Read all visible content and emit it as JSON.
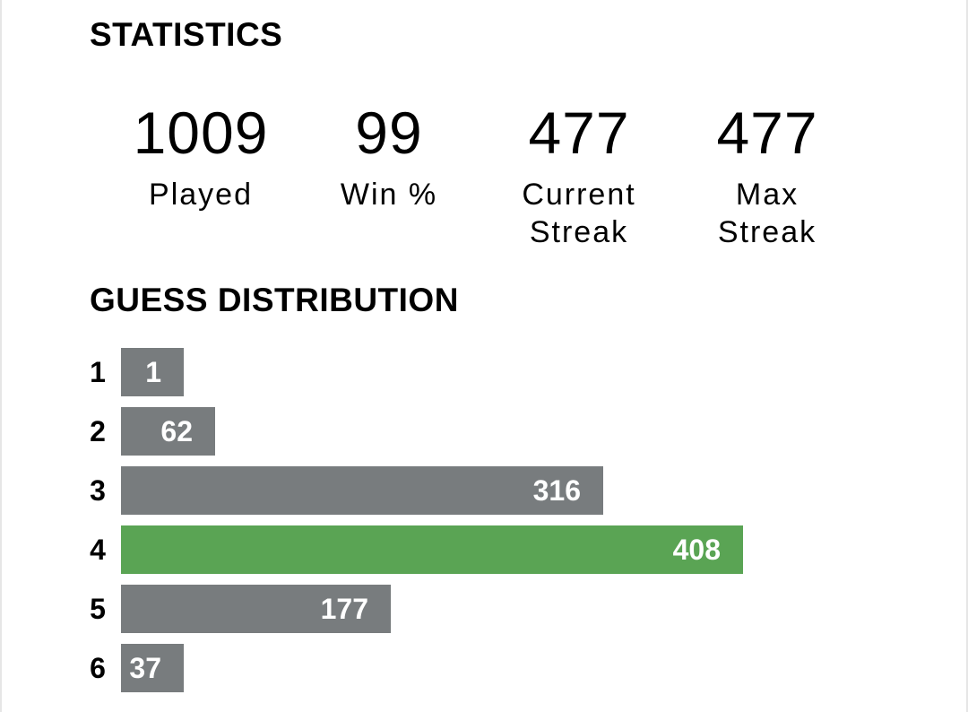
{
  "colors": {
    "bar_default": "#787c7e",
    "bar_highlight": "#5aa454",
    "bar_text": "#ffffff",
    "text": "#000000",
    "background": "#ffffff"
  },
  "statistics": {
    "heading": "STATISTICS",
    "items": [
      {
        "value": "1009",
        "label": "Played"
      },
      {
        "value": "99",
        "label": "Win %"
      },
      {
        "value": "477",
        "label": "Current Streak"
      },
      {
        "value": "477",
        "label": "Max Streak"
      }
    ]
  },
  "guess_distribution": {
    "heading": "GUESS DISTRIBUTION",
    "max_value": 408,
    "highlighted_guess": "4",
    "rows": [
      {
        "guess": "1",
        "count": "1",
        "value": 1
      },
      {
        "guess": "2",
        "count": "62",
        "value": 62
      },
      {
        "guess": "3",
        "count": "316",
        "value": 316
      },
      {
        "guess": "4",
        "count": "408",
        "value": 408
      },
      {
        "guess": "5",
        "count": "177",
        "value": 177
      },
      {
        "guess": "6",
        "count": "37",
        "value": 37
      }
    ]
  }
}
